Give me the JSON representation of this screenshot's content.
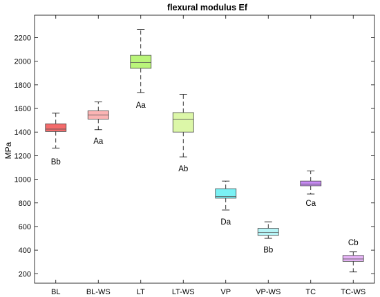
{
  "chart_data": {
    "type": "box",
    "title": "flexural modulus Ef",
    "xlabel": "",
    "ylabel": "MPa",
    "ylim": [
      120,
      2390
    ],
    "yticks": [
      200,
      400,
      600,
      800,
      1000,
      1200,
      1400,
      1600,
      1800,
      2000,
      2200
    ],
    "grid": false,
    "legend": "none",
    "categories": [
      "BL",
      "BL-WS",
      "LT",
      "LT-WS",
      "VP",
      "VP-WS",
      "TC",
      "TC-WS"
    ],
    "boxes": [
      {
        "category": "BL",
        "whisker_low": 1265,
        "q1": 1405,
        "median": 1425,
        "q3": 1470,
        "whisker_high": 1560,
        "letters": "Bb",
        "letters_y": 1150,
        "color": "#f46b6b"
      },
      {
        "category": "BL-WS",
        "whisker_low": 1420,
        "q1": 1510,
        "median": 1545,
        "q3": 1580,
        "whisker_high": 1655,
        "letters": "Aa",
        "letters_y": 1325,
        "color": "#fbb4b4"
      },
      {
        "category": "LT",
        "whisker_low": 1735,
        "q1": 1940,
        "median": 1990,
        "q3": 2050,
        "whisker_high": 2270,
        "letters": "Aa",
        "letters_y": 1630,
        "color": "#baf57a"
      },
      {
        "category": "LT-WS",
        "whisker_low": 1190,
        "q1": 1400,
        "median": 1510,
        "q3": 1565,
        "whisker_high": 1720,
        "letters": "Ab",
        "letters_y": 1090,
        "color": "#dcf7a8"
      },
      {
        "category": "VP",
        "whisker_low": 740,
        "q1": 840,
        "median": 855,
        "q3": 920,
        "whisker_high": 985,
        "letters": "Da",
        "letters_y": 640,
        "color": "#7af1f4"
      },
      {
        "category": "VP-WS",
        "whisker_low": 500,
        "q1": 525,
        "median": 550,
        "q3": 585,
        "whisker_high": 640,
        "letters": "Bb",
        "letters_y": 405,
        "color": "#b6f4f6"
      },
      {
        "category": "TC",
        "whisker_low": 875,
        "q1": 945,
        "median": 960,
        "q3": 985,
        "whisker_high": 1070,
        "letters": "Ca",
        "letters_y": 800,
        "color": "#c98af7"
      },
      {
        "category": "TC-WS",
        "whisker_low": 215,
        "q1": 305,
        "median": 325,
        "q3": 355,
        "whisker_high": 385,
        "letters": "Cb",
        "letters_y": 465,
        "color": "#e7b4f7"
      }
    ]
  }
}
